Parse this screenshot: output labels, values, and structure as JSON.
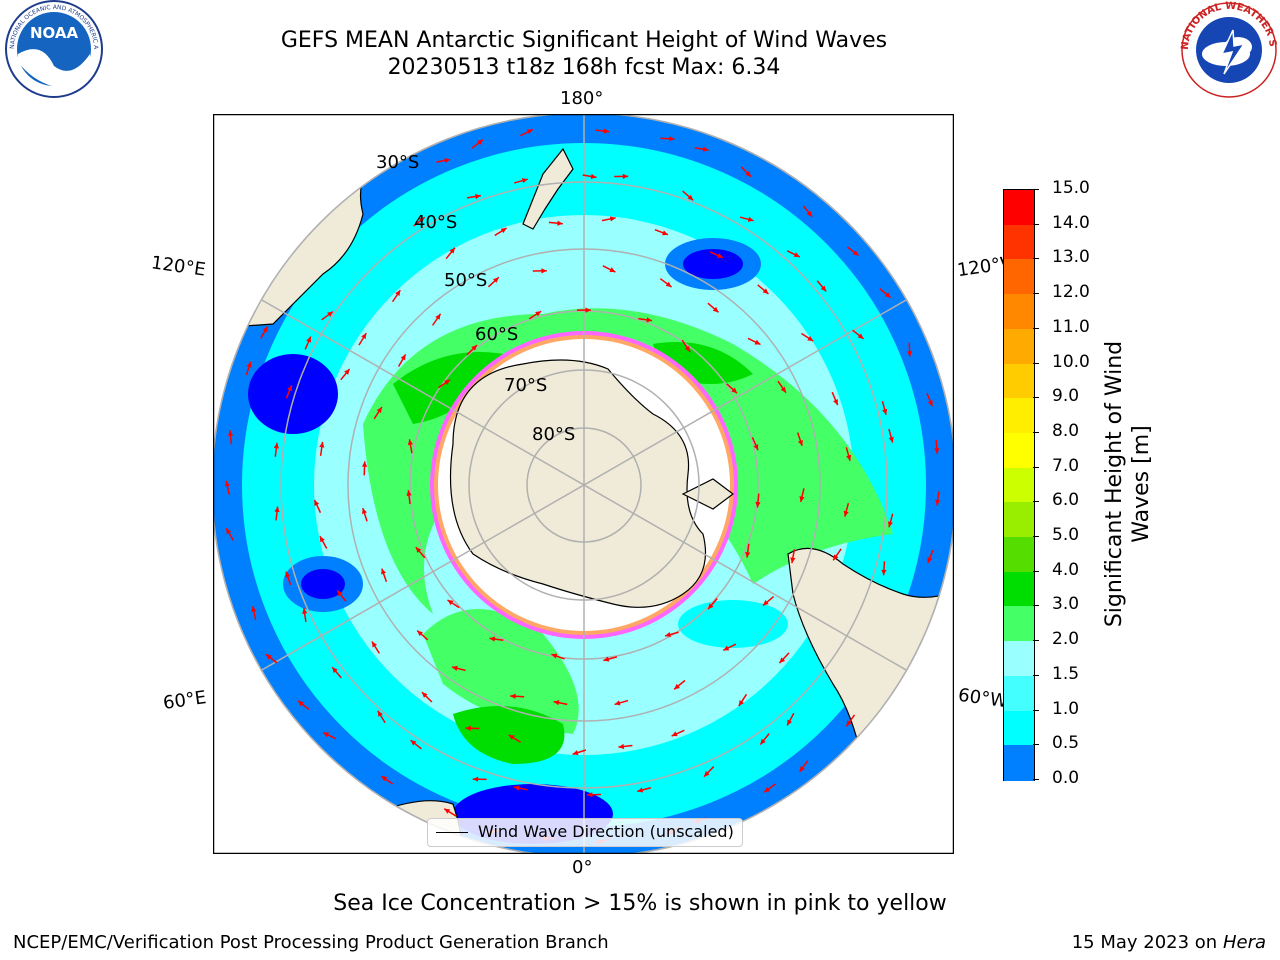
{
  "title": {
    "line1": "GEFS MEAN Antarctic Significant Height of Wind Waves",
    "line2": "20230513 t18z 168h fcst   Max: 6.34"
  },
  "logos": {
    "left": "NOAA",
    "right": "NATIONAL WEATHER SERVICE"
  },
  "map": {
    "longitude_labels": {
      "top": "180°",
      "bottom": "0°",
      "upper_left": "120°E",
      "upper_right": "120°W",
      "lower_left": "60°E",
      "lower_right": "60°W"
    },
    "latitude_labels": [
      "30°S",
      "40°S",
      "50°S",
      "60°S",
      "70°S",
      "80°S"
    ],
    "colors": {
      "land": "#efebd8",
      "ice_pink": "#ff66ff",
      "ice_yellow": "#ffd400",
      "arrow": "#ff0000",
      "grid": "#b0b0b0"
    }
  },
  "legend": {
    "label": "Wind Wave Direction (unscaled)"
  },
  "colorbar": {
    "ticks": [
      "15.0",
      "14.0",
      "13.0",
      "12.0",
      "11.0",
      "10.0",
      "9.0",
      "8.0",
      "7.0",
      "6.0",
      "5.0",
      "4.0",
      "3.0",
      "2.0",
      "1.5",
      "1.0",
      "0.5",
      "0.0"
    ],
    "colors": [
      "#ff0000",
      "#ff3300",
      "#ff6600",
      "#ff8800",
      "#ffaa00",
      "#ffcc00",
      "#ffee00",
      "#ffff00",
      "#ccff00",
      "#99ee00",
      "#55dd00",
      "#00dd00",
      "#44ff66",
      "#99ffff",
      "#44ffff",
      "#00ffff",
      "#0080ff",
      "#0000ff"
    ],
    "label": "Significant Height of Wind Waves [m]"
  },
  "notes": {
    "ice": "Sea Ice Concentration > 15% is shown in pink to yellow"
  },
  "footer": {
    "left": "NCEP/EMC/Verification Post Processing Product Generation Branch",
    "right_date": "15 May 2023 on",
    "right_host": "Hera"
  }
}
